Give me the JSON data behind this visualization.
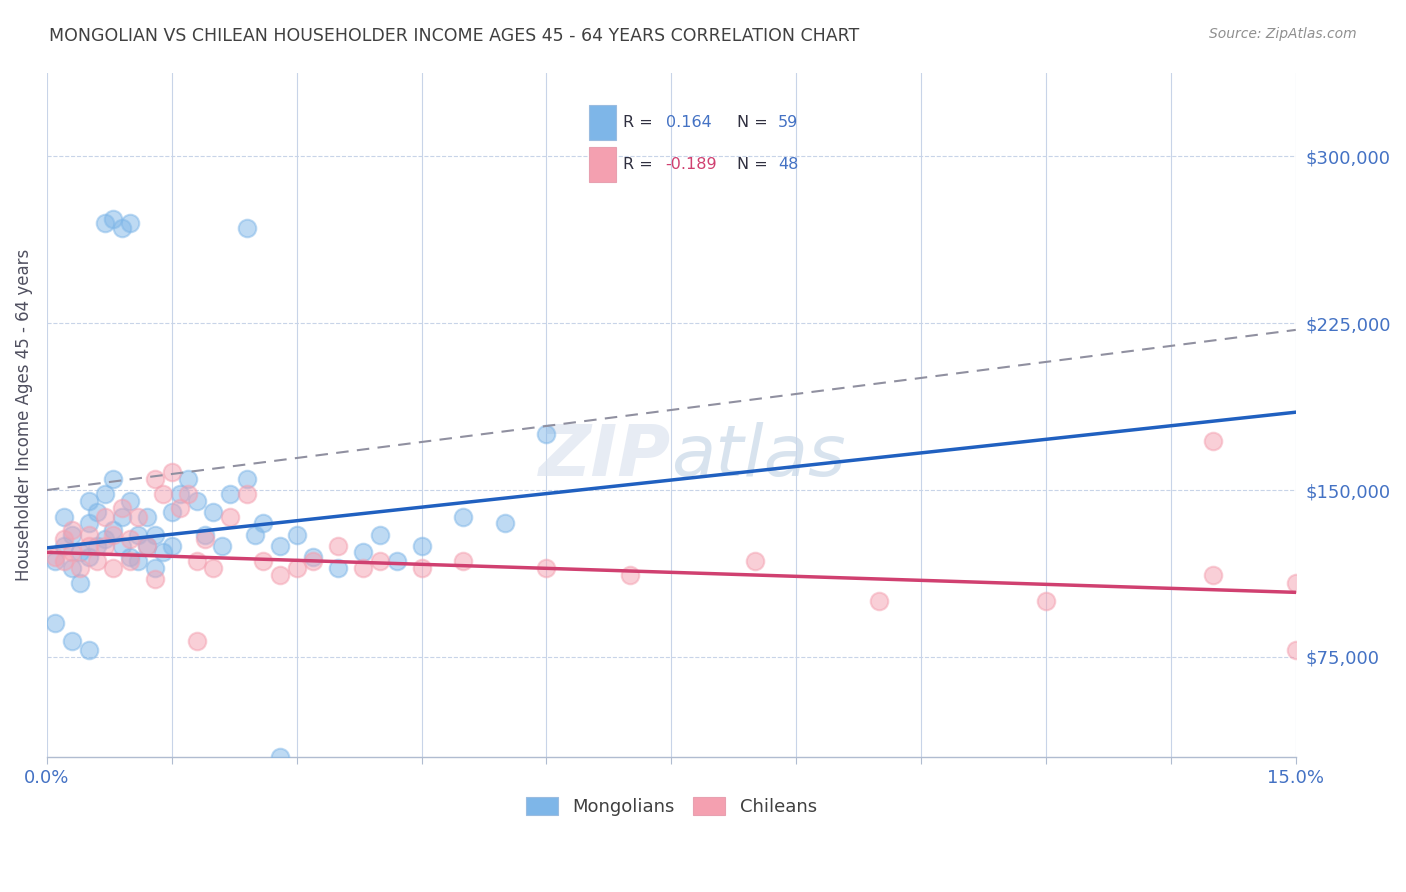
{
  "title": "MONGOLIAN VS CHILEAN HOUSEHOLDER INCOME AGES 45 - 64 YEARS CORRELATION CHART",
  "source": "Source: ZipAtlas.com",
  "ylabel": "Householder Income Ages 45 - 64 years",
  "xlim": [
    0.0,
    0.15
  ],
  "ylim": [
    30000,
    337500
  ],
  "ytick_values": [
    75000,
    150000,
    225000,
    300000
  ],
  "ytick_labels": [
    "$75,000",
    "$150,000",
    "$225,000",
    "$300,000"
  ],
  "mongolian_color": "#7eb6e8",
  "chilean_color": "#f4a0b0",
  "mongolian_line_color": "#2060c0",
  "chilean_line_color": "#d04070",
  "dashed_line_color": "#9090a0",
  "background_color": "#ffffff",
  "grid_color": "#c8d4e8",
  "mongolian_R": 0.164,
  "mongolian_N": 59,
  "chilean_R": -0.189,
  "chilean_N": 48,
  "mon_line_x0": 0.0,
  "mon_line_y0": 124000,
  "mon_line_x1": 0.15,
  "mon_line_y1": 185000,
  "chi_line_x0": 0.0,
  "chi_line_y0": 122000,
  "chi_line_x1": 0.15,
  "chi_line_y1": 104000,
  "dash_line_x0": 0.0,
  "dash_line_y0": 150000,
  "dash_line_x1": 0.15,
  "dash_line_y1": 222000,
  "mongolian_x": [
    0.001,
    0.002,
    0.002,
    0.003,
    0.003,
    0.004,
    0.004,
    0.005,
    0.005,
    0.005,
    0.006,
    0.006,
    0.007,
    0.007,
    0.008,
    0.008,
    0.009,
    0.009,
    0.01,
    0.01,
    0.011,
    0.011,
    0.012,
    0.012,
    0.013,
    0.013,
    0.014,
    0.015,
    0.015,
    0.016,
    0.017,
    0.018,
    0.019,
    0.02,
    0.021,
    0.022,
    0.024,
    0.025,
    0.026,
    0.028,
    0.03,
    0.032,
    0.035,
    0.038,
    0.04,
    0.042,
    0.045,
    0.05,
    0.055,
    0.06,
    0.007,
    0.008,
    0.009,
    0.01,
    0.024,
    0.028,
    0.001,
    0.003,
    0.005
  ],
  "mongolian_y": [
    118000,
    125000,
    138000,
    115000,
    130000,
    108000,
    122000,
    120000,
    135000,
    145000,
    125000,
    140000,
    148000,
    128000,
    155000,
    132000,
    125000,
    138000,
    145000,
    120000,
    130000,
    118000,
    125000,
    138000,
    130000,
    115000,
    122000,
    140000,
    125000,
    148000,
    155000,
    145000,
    130000,
    140000,
    125000,
    148000,
    155000,
    130000,
    135000,
    125000,
    130000,
    120000,
    115000,
    122000,
    130000,
    118000,
    125000,
    138000,
    135000,
    175000,
    270000,
    272000,
    268000,
    270000,
    268000,
    30000,
    90000,
    82000,
    78000
  ],
  "chilean_x": [
    0.001,
    0.002,
    0.002,
    0.003,
    0.003,
    0.004,
    0.005,
    0.005,
    0.006,
    0.007,
    0.007,
    0.008,
    0.008,
    0.009,
    0.01,
    0.01,
    0.011,
    0.012,
    0.013,
    0.014,
    0.015,
    0.016,
    0.017,
    0.018,
    0.019,
    0.02,
    0.022,
    0.024,
    0.026,
    0.028,
    0.03,
    0.032,
    0.035,
    0.038,
    0.04,
    0.045,
    0.05,
    0.06,
    0.07,
    0.085,
    0.1,
    0.12,
    0.14,
    0.15,
    0.013,
    0.018,
    0.14,
    0.15
  ],
  "chilean_y": [
    120000,
    128000,
    118000,
    132000,
    122000,
    115000,
    130000,
    125000,
    118000,
    138000,
    125000,
    130000,
    115000,
    142000,
    128000,
    118000,
    138000,
    125000,
    155000,
    148000,
    158000,
    142000,
    148000,
    118000,
    128000,
    115000,
    138000,
    148000,
    118000,
    112000,
    115000,
    118000,
    125000,
    115000,
    118000,
    115000,
    118000,
    115000,
    112000,
    118000,
    100000,
    100000,
    112000,
    108000,
    110000,
    82000,
    172000,
    78000
  ]
}
